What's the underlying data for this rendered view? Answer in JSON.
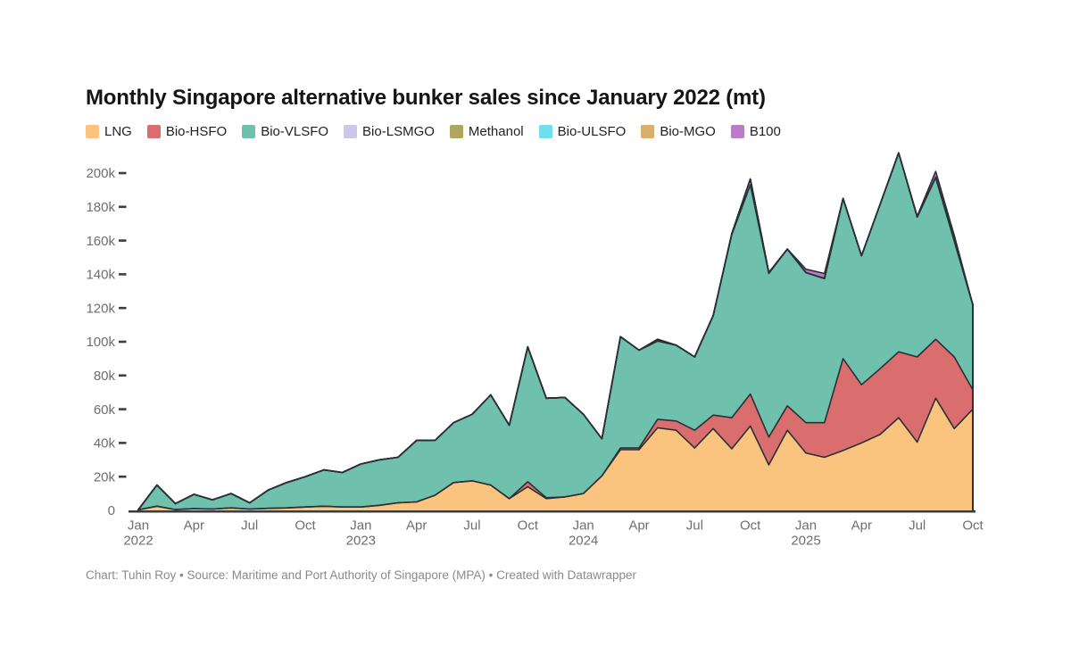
{
  "header": {
    "title": "Monthly Singapore alternative bunker sales since January 2022 (mt)"
  },
  "footer": {
    "credit": "Chart: Tuhin Roy • Source: Maritime and Port Authority of Singapore (MPA) • Created with Datawrapper"
  },
  "chart_data": {
    "type": "area",
    "stacked": true,
    "grid": false,
    "legend_position": "top",
    "title": "Monthly Singapore alternative bunker sales since January 2022 (mt)",
    "unit": "mt",
    "ylim": [
      0,
      200000
    ],
    "axis_text_color": "#6e6e6e",
    "line_color": "#2a3036",
    "y_ticks": [
      {
        "value": 0,
        "label": "0"
      },
      {
        "value": 20000,
        "label": "20k"
      },
      {
        "value": 40000,
        "label": "40k"
      },
      {
        "value": 60000,
        "label": "60k"
      },
      {
        "value": 80000,
        "label": "80k"
      },
      {
        "value": 100000,
        "label": "100k"
      },
      {
        "value": 120000,
        "label": "120k"
      },
      {
        "value": 140000,
        "label": "140k"
      },
      {
        "value": 160000,
        "label": "160k"
      },
      {
        "value": 180000,
        "label": "180k"
      },
      {
        "value": 200000,
        "label": "200k"
      }
    ],
    "x_ticks": [
      {
        "index": 0,
        "label": "Jan",
        "year": "2022"
      },
      {
        "index": 3,
        "label": "Apr"
      },
      {
        "index": 6,
        "label": "Jul"
      },
      {
        "index": 9,
        "label": "Oct"
      },
      {
        "index": 12,
        "label": "Jan",
        "year": "2023"
      },
      {
        "index": 15,
        "label": "Apr"
      },
      {
        "index": 18,
        "label": "Jul"
      },
      {
        "index": 21,
        "label": "Oct"
      },
      {
        "index": 24,
        "label": "Jan",
        "year": "2024"
      },
      {
        "index": 27,
        "label": "Apr"
      },
      {
        "index": 30,
        "label": "Jul"
      },
      {
        "index": 33,
        "label": "Oct"
      },
      {
        "index": 36,
        "label": "Jan",
        "year": "2025"
      },
      {
        "index": 39,
        "label": "Apr"
      },
      {
        "index": 42,
        "label": "Jul"
      },
      {
        "index": 45,
        "label": "Oct"
      }
    ],
    "months": [
      "Jan 2022",
      "Feb 2022",
      "Mar 2022",
      "Apr 2022",
      "May 2022",
      "Jun 2022",
      "Jul 2022",
      "Aug 2022",
      "Sep 2022",
      "Oct 2022",
      "Nov 2022",
      "Dec 2022",
      "Jan 2023",
      "Feb 2023",
      "Mar 2023",
      "Apr 2023",
      "May 2023",
      "Jun 2023",
      "Jul 2023",
      "Aug 2023",
      "Sep 2023",
      "Oct 2023",
      "Nov 2023",
      "Dec 2023",
      "Jan 2024",
      "Feb 2024",
      "Mar 2024",
      "Apr 2024",
      "May 2024",
      "Jun 2024",
      "Jul 2024",
      "Aug 2024",
      "Sep 2024",
      "Oct 2024",
      "Nov 2024",
      "Dec 2024",
      "Jan 2025",
      "Feb 2025",
      "Mar 2025",
      "Apr 2025",
      "May 2025",
      "Jun 2025",
      "Jul 2025",
      "Aug 2025",
      "Sep 2025",
      "Oct 2025"
    ],
    "series": [
      {
        "name": "LNG",
        "color": "#FAC47E",
        "values": [
          300,
          2500,
          500,
          1000,
          800,
          1500,
          800,
          1200,
          1500,
          2000,
          2500,
          2000,
          2000,
          3000,
          4500,
          5000,
          9000,
          16500,
          17500,
          15000,
          7000,
          14000,
          7000,
          8000,
          10000,
          20500,
          36000,
          36000,
          49000,
          47500,
          37000,
          48500,
          36500,
          50000,
          27000,
          47500,
          34000,
          31500,
          35500,
          40000,
          45000,
          55000,
          40500,
          66500,
          48500,
          60000
        ]
      },
      {
        "name": "Bio-HSFO",
        "color": "#DA6D6E",
        "values": [
          0,
          0,
          0,
          0,
          0,
          0,
          0,
          0,
          0,
          0,
          0,
          0,
          0,
          0,
          0,
          0,
          0,
          0,
          0,
          0,
          0,
          3000,
          500,
          0,
          0,
          0,
          1000,
          1000,
          5000,
          5500,
          10500,
          8000,
          18500,
          19000,
          16500,
          14500,
          18000,
          20500,
          54500,
          34500,
          39000,
          39000,
          50500,
          35000,
          42500,
          11500
        ]
      },
      {
        "name": "Bio-VLSFO",
        "color": "#6FC0AC",
        "values": [
          200,
          12500,
          3500,
          8500,
          5500,
          8500,
          3700,
          10800,
          15000,
          18000,
          21500,
          20500,
          25500,
          27000,
          27000,
          36500,
          32500,
          35500,
          39500,
          53500,
          43500,
          80000,
          59000,
          59000,
          47000,
          22000,
          66000,
          58000,
          46500,
          45000,
          43500,
          59000,
          108500,
          124000,
          97000,
          93000,
          89000,
          85500,
          95000,
          76500,
          97500,
          118000,
          83000,
          96000,
          69000,
          50500
        ]
      },
      {
        "name": "Bio-LSMGO",
        "color": "#CBC9EA",
        "values": [
          0,
          0,
          0,
          0,
          0,
          0,
          0,
          0,
          0,
          0,
          0,
          0,
          0,
          0,
          0,
          0,
          0,
          0,
          0,
          0,
          0,
          0,
          0,
          0,
          0,
          0,
          0,
          0,
          0,
          0,
          0,
          0,
          500,
          3500,
          500,
          0,
          0,
          0,
          0,
          0,
          0,
          0,
          0,
          0,
          0,
          0
        ]
      },
      {
        "name": "Methanol",
        "color": "#AEA75F",
        "values": [
          0,
          0,
          0,
          0,
          0,
          0,
          0,
          0,
          0,
          0,
          0,
          0,
          0,
          0,
          0,
          0,
          0,
          0,
          0,
          0,
          0,
          0,
          0,
          0,
          0,
          0,
          0,
          0,
          0,
          0,
          0,
          0,
          0,
          0,
          0,
          0,
          0,
          0,
          0,
          0,
          0,
          0,
          0,
          0,
          0,
          0
        ]
      },
      {
        "name": "Bio-ULSFO",
        "color": "#70DFEE",
        "values": [
          0,
          0,
          0,
          0,
          0,
          0,
          0,
          0,
          0,
          0,
          0,
          0,
          0,
          0,
          0,
          0,
          0,
          0,
          0,
          0,
          0,
          0,
          0,
          0,
          0,
          0,
          0,
          0,
          0,
          0,
          0,
          0,
          0,
          0,
          0,
          0,
          0,
          0,
          0,
          0,
          0,
          0,
          0,
          0,
          0,
          0
        ]
      },
      {
        "name": "Bio-MGO",
        "color": "#D8AF6B",
        "values": [
          0,
          0,
          0,
          0,
          0,
          0,
          0,
          0,
          0,
          0,
          0,
          0,
          0,
          0,
          0,
          0,
          0,
          0,
          0,
          0,
          0,
          0,
          0,
          0,
          0,
          0,
          0,
          0,
          1000,
          0,
          0,
          0,
          0,
          0,
          0,
          0,
          0,
          0,
          0,
          0,
          0,
          0,
          0,
          0,
          0,
          0
        ]
      },
      {
        "name": "B100",
        "color": "#BD7AC8",
        "values": [
          0,
          0,
          0,
          0,
          0,
          0,
          0,
          0,
          0,
          0,
          0,
          0,
          0,
          0,
          0,
          0,
          0,
          0,
          0,
          0,
          0,
          0,
          0,
          0,
          0,
          0,
          0,
          0,
          0,
          0,
          0,
          0,
          0,
          0,
          0,
          0,
          2000,
          3000,
          0,
          0,
          0,
          0,
          500,
          3500,
          3000,
          0
        ]
      }
    ]
  }
}
